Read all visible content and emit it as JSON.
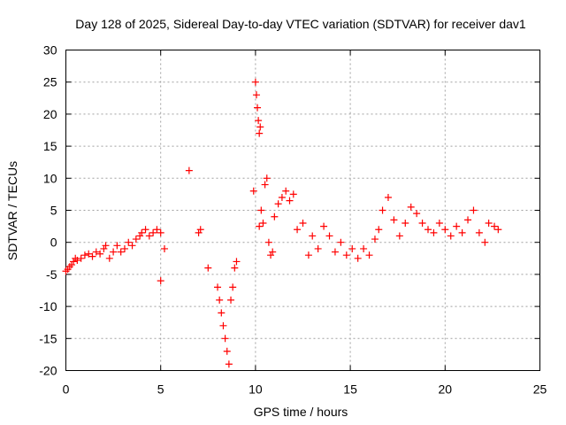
{
  "chart_data": {
    "type": "scatter",
    "title": "Day 128 of 2025, Sidereal Day-to-day VTEC variation (SDTVAR) for receiver dav1",
    "xlabel": "GPS time / hours",
    "ylabel": "SDTVAR / TECUs",
    "xlim": [
      0,
      25
    ],
    "ylim": [
      -20,
      30
    ],
    "xticks": [
      0,
      5,
      10,
      15,
      20,
      25
    ],
    "yticks": [
      -20,
      -15,
      -10,
      -5,
      0,
      5,
      10,
      15,
      20,
      25,
      30
    ],
    "grid": true,
    "marker": "+",
    "color": "#ff0000",
    "series": [
      {
        "name": "SDTVAR",
        "x": [
          0.0,
          0.1,
          0.2,
          0.3,
          0.4,
          0.5,
          0.6,
          0.8,
          1.0,
          1.2,
          1.4,
          1.6,
          1.8,
          2.0,
          2.1,
          2.3,
          2.5,
          2.7,
          2.9,
          3.1,
          3.3,
          3.5,
          3.7,
          3.9,
          4.0,
          4.2,
          4.4,
          4.6,
          4.8,
          5.0,
          5.0,
          5.2,
          6.5,
          7.0,
          7.1,
          7.5,
          8.0,
          8.1,
          8.2,
          8.3,
          8.4,
          8.5,
          8.6,
          8.7,
          8.8,
          8.9,
          9.0,
          9.9,
          10.0,
          10.05,
          10.1,
          10.15,
          10.2,
          10.25,
          10.2,
          10.3,
          10.4,
          10.5,
          10.6,
          10.7,
          10.8,
          10.9,
          11.0,
          11.2,
          11.4,
          11.6,
          11.8,
          12.0,
          12.2,
          12.5,
          12.8,
          13.0,
          13.3,
          13.6,
          13.9,
          14.2,
          14.5,
          14.8,
          15.1,
          15.4,
          15.7,
          16.0,
          16.3,
          16.5,
          16.7,
          17.0,
          17.3,
          17.6,
          17.9,
          18.2,
          18.5,
          18.8,
          19.1,
          19.4,
          19.7,
          20.0,
          20.3,
          20.6,
          20.9,
          21.2,
          21.5,
          21.8,
          22.1,
          22.3,
          22.6,
          22.8
        ],
        "y": [
          -4.5,
          -4.2,
          -3.8,
          -3.5,
          -3.0,
          -2.5,
          -2.8,
          -2.5,
          -2.0,
          -1.8,
          -2.2,
          -1.5,
          -1.8,
          -1.0,
          -0.5,
          -2.5,
          -1.5,
          -0.5,
          -1.5,
          -1.0,
          0.0,
          -0.5,
          0.5,
          1.0,
          1.5,
          2.0,
          1.0,
          1.5,
          2.0,
          1.5,
          -6.0,
          -1.0,
          11.2,
          1.5,
          2.0,
          -4.0,
          -7.0,
          -9.0,
          -11.0,
          -13.0,
          -15.0,
          -17.0,
          -19.0,
          -9.0,
          -7.0,
          -4.0,
          -3.0,
          8.0,
          25.0,
          23.0,
          21.0,
          19.0,
          17.0,
          18.0,
          2.5,
          5.0,
          3.0,
          9.0,
          10.0,
          0.0,
          -2.0,
          -1.5,
          4.0,
          6.0,
          7.0,
          8.0,
          6.5,
          7.5,
          2.0,
          3.0,
          -2.0,
          1.0,
          -1.0,
          2.5,
          1.0,
          -1.5,
          0.0,
          -2.0,
          -1.0,
          -2.5,
          -1.0,
          -2.0,
          0.5,
          2.0,
          5.0,
          7.0,
          3.5,
          1.0,
          3.0,
          5.5,
          4.5,
          3.0,
          2.0,
          1.5,
          3.0,
          2.0,
          1.0,
          2.5,
          1.5,
          3.5,
          5.0,
          1.5,
          0.0,
          3.0,
          2.5,
          2.0
        ]
      }
    ]
  }
}
